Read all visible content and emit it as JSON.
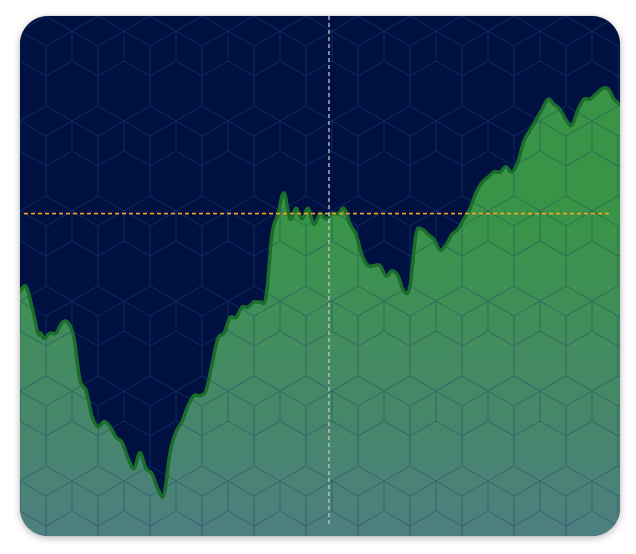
{
  "chart_data": {
    "type": "area",
    "title": "",
    "xlabel": "",
    "ylabel": "",
    "x_range": [
      0,
      100
    ],
    "y_range": [
      0,
      100
    ],
    "grid": false,
    "legend": "none",
    "series": [
      {
        "x": [
          0,
          1,
          2,
          3,
          3.5,
          4,
          5,
          6,
          7,
          8,
          9,
          10,
          11,
          12,
          13,
          14,
          15,
          16,
          17,
          18,
          19,
          20,
          21,
          22,
          23,
          24,
          25,
          26,
          27,
          28,
          29,
          30,
          31,
          32,
          33,
          34,
          35,
          36,
          37,
          38,
          39,
          40,
          41,
          42,
          43,
          44,
          45,
          46,
          47,
          48,
          49,
          50,
          51,
          52,
          53,
          54,
          55,
          56,
          57,
          58,
          59,
          60,
          61,
          62,
          63,
          64,
          65,
          66,
          67,
          68,
          69,
          70,
          71,
          72,
          73,
          74,
          75,
          76,
          77,
          78,
          79,
          80,
          81,
          82,
          83,
          84,
          85,
          86,
          87,
          88,
          89,
          90,
          91,
          92,
          93,
          94,
          95,
          96,
          97,
          98,
          99,
          100
        ],
        "values": [
          47,
          48,
          44,
          39,
          39,
          38,
          39,
          39,
          41,
          41,
          38,
          30,
          28,
          23,
          21,
          22,
          21,
          19,
          18,
          15,
          13,
          16,
          13,
          12,
          9,
          8,
          16,
          20,
          22,
          25,
          27,
          27,
          28,
          33,
          38,
          39,
          42,
          42,
          44,
          44,
          45,
          45,
          46,
          58,
          62,
          66,
          61,
          63,
          61,
          63,
          60,
          62,
          61,
          62,
          62,
          63,
          60,
          58,
          54,
          52,
          52,
          52,
          50,
          51,
          50,
          47,
          48,
          58,
          59,
          58,
          57,
          55,
          56,
          58,
          59,
          61,
          63,
          66,
          68,
          69,
          70,
          70,
          71,
          70,
          72,
          76,
          78,
          80,
          82,
          84,
          83,
          82,
          80,
          79,
          82,
          84,
          84,
          85,
          86,
          86,
          84,
          83
        ]
      }
    ],
    "reference_lines": {
      "horizontal_y": 62,
      "vertical_x": 51.5
    },
    "colors": {
      "plot_background": "#001040",
      "hex_pattern": "#0e2a60",
      "area_top": "#3a9448",
      "area_bottom": "#4e7f80",
      "line": "#1a6e2c",
      "horizontal_reference": "#ffa024",
      "vertical_reference": "#c8c8c8"
    }
  }
}
